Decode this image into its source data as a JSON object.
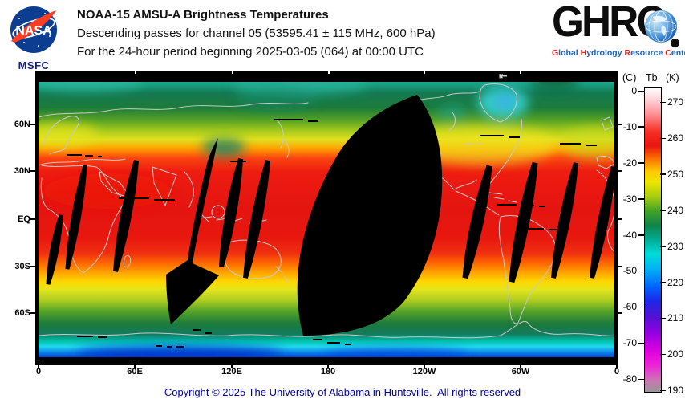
{
  "header": {
    "nasa_logo": {
      "label": "NASA",
      "caption": "MSFC"
    },
    "title": "NOAA-15 AMSU-A Brightness Temperatures",
    "line2": "Descending passes for channel 05 (53595.41 ± 115 MHz, 600 hPa)",
    "line3": "For the 24-hour period beginning 2025-03-05 (064) at 00:00 UTC",
    "ghrc_logo": {
      "acronym_ghr": "GHR",
      "acronym_c": "C",
      "tagline_words": [
        "Global",
        "Hydrology",
        "Resource",
        "Center"
      ]
    }
  },
  "map": {
    "lat_labels": [
      "60N",
      "30N",
      "EQ",
      "30S",
      "60S"
    ],
    "lon_labels": [
      "0",
      "60E",
      "120E",
      "180",
      "120W",
      "60W",
      "0"
    ],
    "overlap_arrow": "⇤"
  },
  "colorbar": {
    "header_c": "(C)",
    "header_tb": "Tb",
    "header_k": "(K)",
    "celsius_ticks": [
      0,
      -10,
      -20,
      -30,
      -40,
      -50,
      -60,
      -70,
      -80
    ],
    "kelvin_ticks": [
      270,
      260,
      250,
      240,
      230,
      220,
      210,
      200,
      190
    ]
  },
  "footer": {
    "copyright": "Copyright © 2025 The University of Alabama in Huntsville.  All rights reserved"
  },
  "chart_data": {
    "type": "heatmap",
    "title": "NOAA-15 AMSU-A Brightness Temperatures",
    "subtitle": "Descending passes for channel 05 (53595.41 ± 115 MHz, 600 hPa)",
    "period": "24-hour period beginning 2025-03-05 (064) at 00:00 UTC",
    "projection": "equirectangular global map, 0E to 0E via 180",
    "x_tick_labels": [
      "0",
      "60E",
      "120E",
      "180",
      "120W",
      "60W",
      "0"
    ],
    "y_tick_labels": [
      "60N",
      "30N",
      "EQ",
      "30S",
      "60S"
    ],
    "colorbar": {
      "quantity": "Tb",
      "units_left": "C",
      "units_right": "K",
      "celsius_ticks": [
        0,
        -10,
        -20,
        -30,
        -40,
        -50,
        -60,
        -70,
        -80
      ],
      "kelvin_ticks": [
        270,
        260,
        250,
        240,
        230,
        220,
        210,
        200,
        190
      ],
      "range_K": [
        190,
        274
      ],
      "palette_top_to_bottom": [
        "white",
        "pink",
        "red",
        "orange",
        "yellow",
        "yellow-green",
        "green",
        "dark-green",
        "teal",
        "cyan",
        "blue",
        "blue-purple",
        "magenta",
        "gray"
      ],
      "position": "right"
    },
    "approx_zonal_mean_Tb_K": {
      "75N": 232,
      "60N": 240,
      "45N": 248,
      "30N": 255,
      "15N": 258,
      "EQ": 259,
      "15S": 258,
      "30S": 254,
      "45S": 249,
      "60S": 241,
      "70S": 232,
      "80S": 214
    },
    "no_data": "black orbital inter-swath gaps: one large lens-shaped gap near 180 longitude, a medium swath with southern wedge near 50E-65E, and ~10 narrow slanted slivers across the tropics; black margin strips at top and bottom of map",
    "grid": false,
    "coastlines": "light gray overlay"
  }
}
